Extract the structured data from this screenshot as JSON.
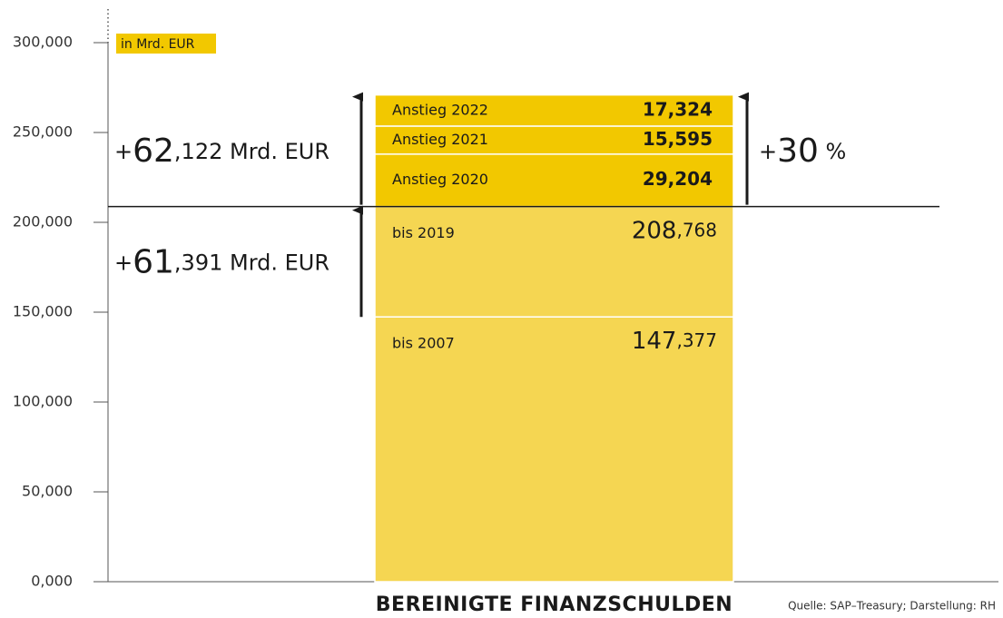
{
  "chart_data": {
    "type": "stacked_bar",
    "categories": [
      "BEREINIGTE FINANZSCHULDEN"
    ],
    "series": [
      {
        "name": "bis 2007",
        "color": "#f5d652",
        "values": [
          147.377
        ],
        "value_labels": [
          "147,377"
        ]
      },
      {
        "name": "bis 2019",
        "color": "#f5d652",
        "values": [
          61.391
        ]
      },
      {
        "name": "Anstieg 2020",
        "color": "#f2c800",
        "values": [
          29.204
        ],
        "value_labels": [
          "29,204"
        ]
      },
      {
        "name": "Anstieg 2021",
        "color": "#f2c800",
        "values": [
          15.595
        ],
        "value_labels": [
          "15,595"
        ]
      },
      {
        "name": "Anstieg 2022",
        "color": "#f2c800",
        "values": [
          17.324
        ],
        "value_labels": [
          "17,324"
        ]
      }
    ],
    "reference_line": {
      "value": 208.768,
      "label": "208,768"
    },
    "ylim": [
      0,
      300
    ],
    "yticks": [
      {
        "value": 0,
        "label": "0,000"
      },
      {
        "value": 50,
        "label": "50,000"
      },
      {
        "value": 100,
        "label": "100,000"
      },
      {
        "value": 150,
        "label": "150,000"
      },
      {
        "value": 200,
        "label": "200,000"
      },
      {
        "value": 250,
        "label": "250,000"
      },
      {
        "value": 300,
        "label": "300,000"
      }
    ],
    "unit_label": "in Mrd. EUR",
    "annotations": [
      "+62,122 Mrd. EUR",
      "+61,391 Mrd. EUR",
      "+30 %"
    ],
    "source": "Quelle: SAP–Treasury; Darstellung: RH"
  }
}
